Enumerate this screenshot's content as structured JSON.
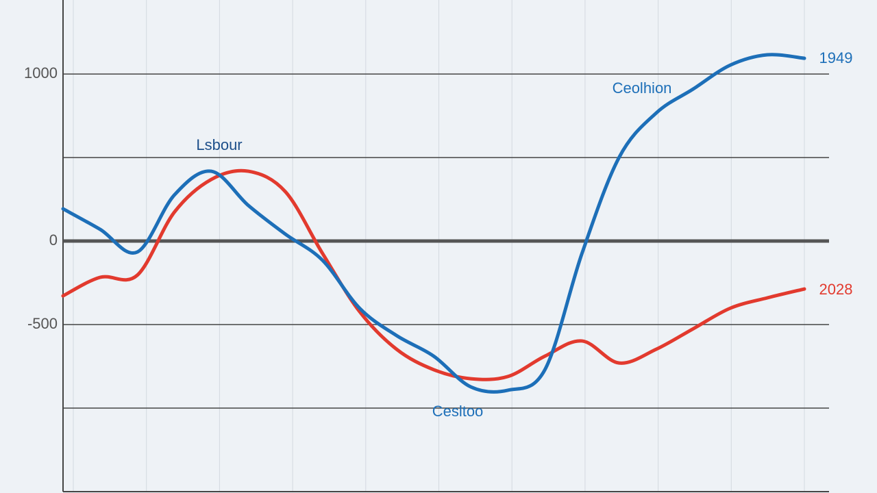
{
  "chart_data": {
    "type": "line",
    "categories": [
      null,
      null,
      null,
      null,
      null,
      null,
      null,
      null,
      null,
      null,
      null,
      null,
      null,
      null,
      null,
      null,
      null,
      null,
      null,
      null,
      null
    ],
    "series": [
      {
        "color": "#1d6fb8",
        "values": [
          193,
          70,
          -66,
          275,
          418,
          213,
          41,
          -115,
          -402,
          -566,
          -689,
          -873,
          -893,
          -770,
          -74,
          500,
          766,
          910,
          1053,
          1115,
          1094
        ]
      },
      {
        "color": "#e23a2e",
        "values": [
          -328,
          -217,
          -205,
          172,
          369,
          418,
          295,
          -74,
          -422,
          -648,
          -770,
          -824,
          -811,
          -689,
          -598,
          -730,
          -648,
          -525,
          -402,
          -340,
          -287
        ]
      }
    ],
    "ylim": [
      -1500,
      1443
    ],
    "yticks": [
      1000,
      {
        "value": 500,
        "label": null
      },
      0,
      -500,
      {
        "value": -1000,
        "label": null
      }
    ],
    "grid": true,
    "annotations": [
      {
        "text": "Lsbour",
        "color": "#1d4f8a"
      },
      {
        "text": "Ceolhion",
        "color": "#1d6fb8"
      },
      {
        "text": "Cesltoo",
        "color": "#1d6fb8"
      },
      {
        "text": "1949",
        "color": "#1d6fb8"
      },
      {
        "text": "2028",
        "color": "#e23a2e"
      }
    ]
  }
}
